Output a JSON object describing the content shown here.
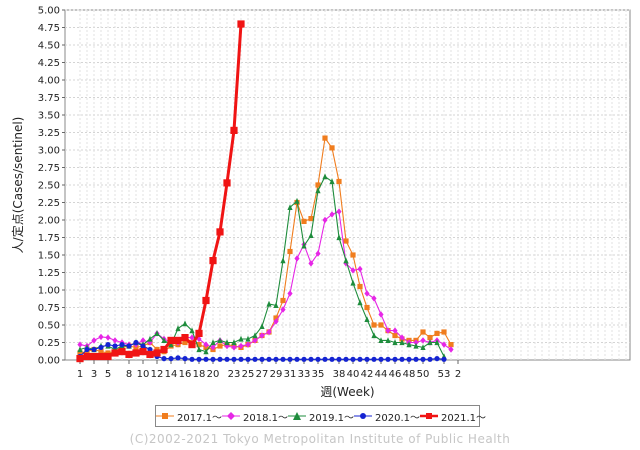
{
  "chart_data": {
    "type": "line",
    "ylabel": "人/定点(Cases/sentinel)",
    "xlabel": "週(Week)",
    "ylim": [
      0,
      5.0
    ],
    "yticks": [
      "0.00",
      "0.25",
      "0.50",
      "0.75",
      "1.00",
      "1.25",
      "1.50",
      "1.75",
      "2.00",
      "2.25",
      "2.50",
      "2.75",
      "3.00",
      "3.25",
      "3.50",
      "3.75",
      "4.00",
      "4.25",
      "4.50",
      "4.75",
      "5.00"
    ],
    "xtick_labels": [
      "1",
      "3",
      "5",
      "8",
      "10",
      "12",
      "14",
      "16",
      "18",
      "20",
      "23",
      "25",
      "27",
      "29",
      "31",
      "33",
      "35",
      "38",
      "40",
      "42",
      "44",
      "46",
      "48",
      "50",
      "53",
      "2"
    ],
    "grid": true,
    "legend_position": "bottom",
    "series": [
      {
        "name": "2017.1～",
        "color": "#f07d1e",
        "marker": "square",
        "values": [
          0.1,
          0.12,
          0.15,
          0.12,
          0.1,
          0.12,
          0.18,
          0.2,
          0.18,
          0.2,
          0.25,
          0.15,
          0.12,
          0.2,
          0.22,
          0.25,
          0.25,
          0.22,
          0.18,
          0.15,
          0.2,
          0.22,
          0.2,
          0.18,
          0.22,
          0.28,
          0.35,
          0.4,
          0.6,
          0.85,
          1.55,
          2.25,
          1.98,
          2.02,
          2.5,
          3.17,
          3.03,
          2.55,
          1.7,
          1.5,
          1.05,
          0.75,
          0.5,
          0.5,
          0.42,
          0.35,
          0.3,
          0.28,
          0.28,
          0.4,
          0.32,
          0.38,
          0.4,
          0.22
        ]
      },
      {
        "name": "2018.1～",
        "color": "#e626e6",
        "marker": "diamond",
        "values": [
          0.22,
          0.2,
          0.28,
          0.33,
          0.32,
          0.28,
          0.25,
          0.22,
          0.22,
          0.28,
          0.25,
          0.38,
          0.3,
          0.25,
          0.25,
          0.32,
          0.32,
          0.3,
          0.22,
          0.18,
          0.28,
          0.2,
          0.18,
          0.2,
          0.22,
          0.28,
          0.35,
          0.4,
          0.55,
          0.72,
          0.95,
          1.45,
          1.65,
          1.38,
          1.52,
          2.0,
          2.08,
          2.12,
          1.38,
          1.28,
          1.3,
          0.95,
          0.88,
          0.65,
          0.42,
          0.42,
          0.32,
          0.25,
          0.25,
          0.28,
          0.25,
          0.28,
          0.22,
          0.15
        ]
      },
      {
        "name": "2019.1～",
        "color": "#1e8c3c",
        "marker": "triangle",
        "values": [
          0.15,
          0.18,
          0.15,
          0.2,
          0.2,
          0.15,
          0.2,
          0.2,
          0.25,
          0.22,
          0.3,
          0.38,
          0.28,
          0.22,
          0.45,
          0.52,
          0.42,
          0.15,
          0.12,
          0.25,
          0.28,
          0.25,
          0.25,
          0.3,
          0.3,
          0.35,
          0.48,
          0.8,
          0.78,
          1.42,
          2.18,
          2.27,
          1.63,
          1.78,
          2.42,
          2.62,
          2.55,
          1.75,
          1.42,
          1.1,
          0.82,
          0.58,
          0.35,
          0.28,
          0.28,
          0.25,
          0.25,
          0.22,
          0.2,
          0.18,
          0.25,
          0.25,
          0.05
        ]
      },
      {
        "name": "2020.1～",
        "color": "#1423d2",
        "marker": "circle",
        "values": [
          0.05,
          0.15,
          0.15,
          0.18,
          0.22,
          0.2,
          0.22,
          0.2,
          0.25,
          0.2,
          0.15,
          0.05,
          0.02,
          0.02,
          0.03,
          0.02,
          0.01,
          0.01,
          0.01,
          0.01,
          0.01,
          0.01,
          0.01,
          0.01,
          0.01,
          0.01,
          0.01,
          0.01,
          0.01,
          0.01,
          0.01,
          0.01,
          0.01,
          0.01,
          0.01,
          0.01,
          0.01,
          0.01,
          0.01,
          0.01,
          0.01,
          0.01,
          0.01,
          0.01,
          0.01,
          0.01,
          0.01,
          0.01,
          0.01,
          0.01,
          0.01,
          0.02,
          0.01
        ]
      },
      {
        "name": "2021.1～",
        "color": "#f01414",
        "marker": "square",
        "thick": true,
        "values": [
          0.02,
          0.05,
          0.05,
          0.05,
          0.05,
          0.1,
          0.12,
          0.08,
          0.1,
          0.12,
          0.08,
          0.1,
          0.15,
          0.28,
          0.28,
          0.32,
          0.22,
          0.38,
          0.85,
          1.42,
          1.83,
          2.53,
          3.28,
          4.8
        ]
      }
    ]
  },
  "copyright": "(C)2002-2021 Tokyo Metropolitan Institute of Public Health"
}
